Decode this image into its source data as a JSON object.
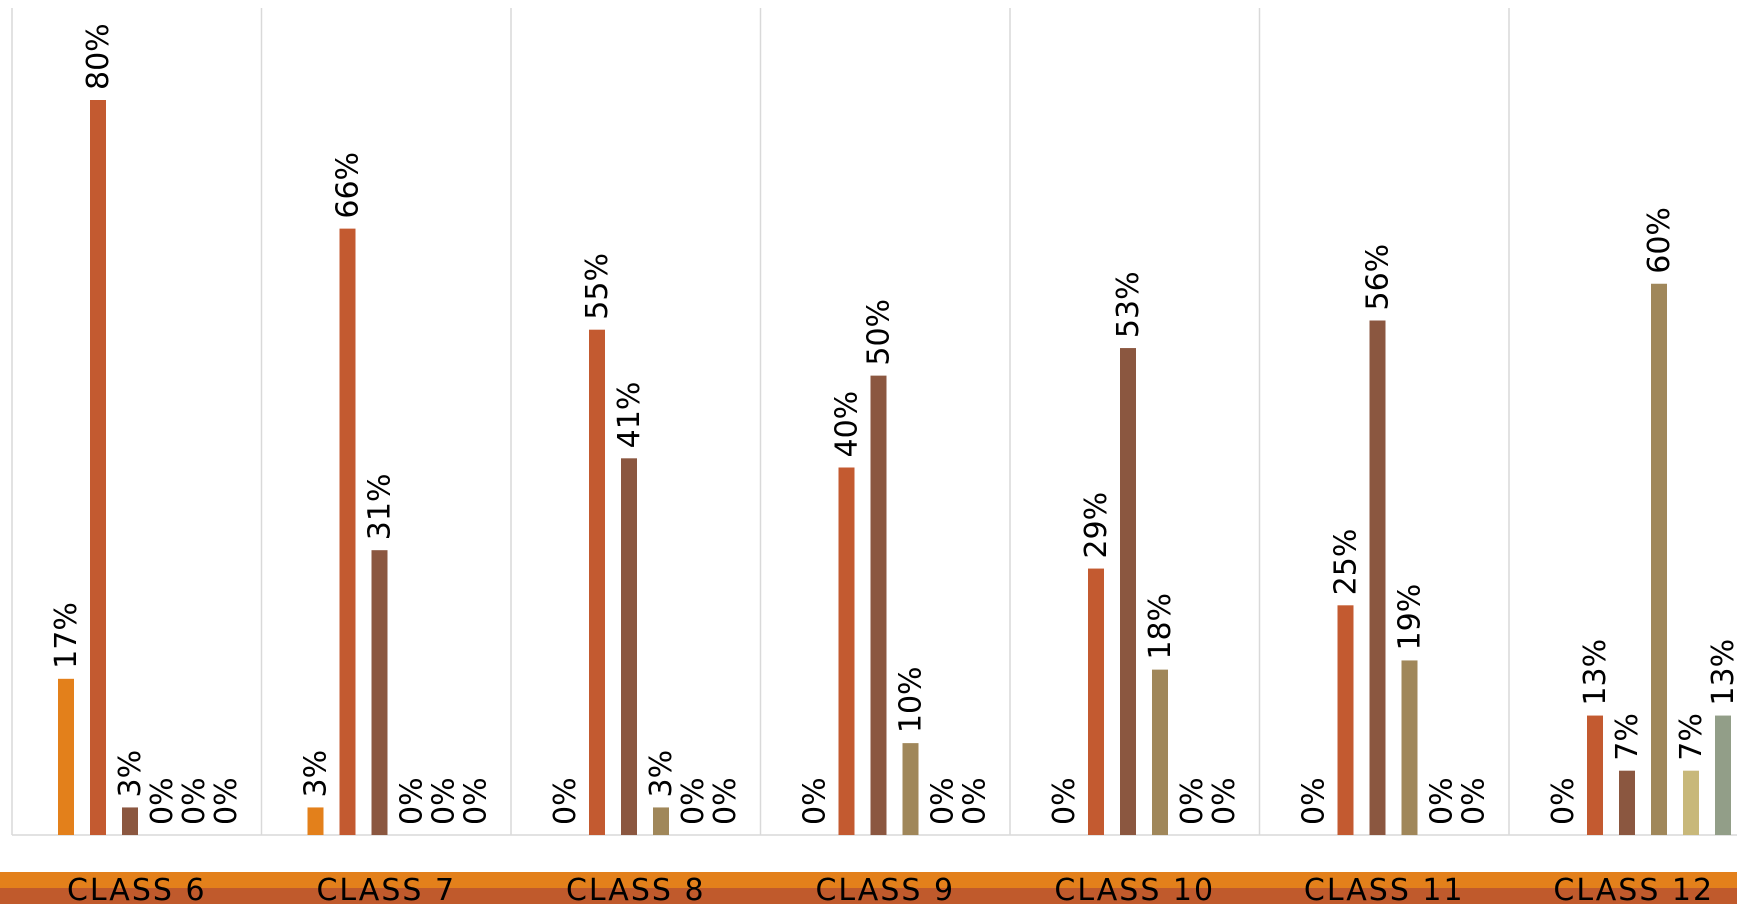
{
  "chart_data": {
    "type": "bar",
    "title": "",
    "xlabel": "",
    "ylabel": "",
    "ylim": [
      0,
      85
    ],
    "grid": "vertical separators between categories",
    "legend": "none",
    "categories": [
      "CLASS 6",
      "CLASS 7",
      "CLASS 8",
      "CLASS 9",
      "CLASS 10",
      "CLASS 11",
      "CLASS 12"
    ],
    "series": [
      {
        "color": "#e3801b",
        "values": [
          17,
          3,
          0,
          0,
          0,
          0,
          0
        ],
        "labels": [
          "17%",
          "3%",
          "0%",
          "0%",
          "0%",
          "0%",
          "0%"
        ]
      },
      {
        "color": "#c35a30",
        "values": [
          80,
          66,
          55,
          40,
          29,
          25,
          13
        ],
        "labels": [
          "80%",
          "66%",
          "55%",
          "40%",
          "29%",
          "25%",
          "13%"
        ]
      },
      {
        "color": "#8b5740",
        "values": [
          3,
          31,
          41,
          50,
          53,
          56,
          7
        ],
        "labels": [
          "3%",
          "31%",
          "41%",
          "50%",
          "53%",
          "56%",
          "7%"
        ]
      },
      {
        "color": "#a0875a",
        "values": [
          0,
          0,
          3,
          10,
          18,
          19,
          60
        ],
        "labels": [
          "0%",
          "0%",
          "3%",
          "10%",
          "18%",
          "19%",
          "60%"
        ]
      },
      {
        "color": "#c8b87a",
        "values": [
          0,
          0,
          0,
          0,
          0,
          0,
          7
        ],
        "labels": [
          "0%",
          "0%",
          "0%",
          "0%",
          "0%",
          "0%",
          "7%"
        ]
      },
      {
        "color": "#929e88",
        "values": [
          0,
          0,
          0,
          0,
          0,
          0,
          13
        ],
        "labels": [
          "0%",
          "0%",
          "0%",
          "0%",
          "0%",
          "0%",
          "13%"
        ]
      }
    ]
  },
  "colors": {
    "band_top": "#e3801b",
    "band_bottom": "#c05a2c",
    "gridline": "#d9d9d9",
    "text": "#000000"
  }
}
